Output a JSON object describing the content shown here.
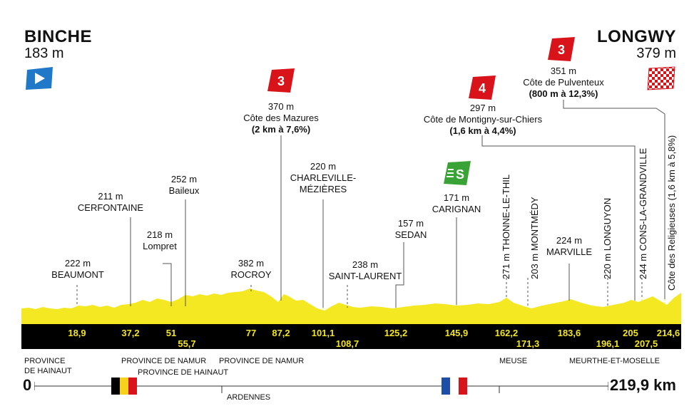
{
  "start": {
    "town": "BINCHE",
    "altitude": "183 m"
  },
  "finish": {
    "town": "LONGWY",
    "altitude": "379 m"
  },
  "points": [
    {
      "name": "BEAUMONT",
      "alt": "222 m",
      "km": "18,9"
    },
    {
      "name": "CERFONTAINE",
      "alt": "211 m",
      "km": "37,2"
    },
    {
      "name": "Lompret",
      "alt": "218 m",
      "km": "51"
    },
    {
      "name": "Baileux",
      "alt": "252 m",
      "km": "55,7"
    },
    {
      "name": "ROCROY",
      "alt": "382 m",
      "km": "77"
    },
    {
      "name": "Côte des Mazures",
      "alt": "370 m",
      "detail": "(2 km à 7,6%)",
      "category": "3",
      "km": "87,2"
    },
    {
      "name_line1": "CHARLEVILLE-",
      "name_line2": "MÉZIÈRES",
      "alt": "220 m",
      "km": "101,1"
    },
    {
      "name": "SAINT-LAURENT",
      "alt": "238 m",
      "km": "108,7"
    },
    {
      "name": "SEDAN",
      "alt": "157 m",
      "km": "125,2"
    },
    {
      "name": "CARIGNAN",
      "alt": "171 m",
      "sprint": "S",
      "km": "145,9"
    },
    {
      "name": "Côte de Montigny-sur-Chiers",
      "alt": "297 m",
      "detail": "(1,6 km à 4,4%)",
      "category": "4",
      "km": "162,2"
    },
    {
      "label": "271 m THONNE-LE-THIL",
      "km": "171,3"
    },
    {
      "label": "203 m MONTMÉDY",
      "km": "183,6"
    },
    {
      "name": "MARVILLE",
      "alt": "224 m",
      "km": "196,1"
    },
    {
      "label": "220 m LONGUYON",
      "km": "205"
    },
    {
      "label": "244 m CONS-LA-GRANDVILLE",
      "km": "207,5"
    },
    {
      "name": "Côte de Pulventeux",
      "alt": "351 m",
      "detail": "(800 m à 12,3%)",
      "category": "3",
      "km": "214,6"
    },
    {
      "label": "Côte des Religieuses (1,6 km à 5,8%)"
    }
  ],
  "km_marks": [
    "18,9",
    "37,2",
    "51",
    "55,7",
    "77",
    "87,2",
    "101,1",
    "108,7",
    "125,2",
    "145,9",
    "162,2",
    "171,3",
    "183,6",
    "196,1",
    "205",
    "207,5",
    "214,6"
  ],
  "regions": {
    "hainaut": [
      "PROVINCE",
      "DE HAINAUT"
    ],
    "namur1": "PROVINCE DE NAMUR",
    "hainaut2": "PROVINCE DE HAINAUT",
    "namur2": "PROVINCE DE NAMUR",
    "ardennes": "ARDENNES",
    "meuse": "MEUSE",
    "mm": "MEURTHE-ET-MOSELLE"
  },
  "axis": {
    "start": "0",
    "end": "219,9 km"
  },
  "colors": {
    "profile": "#f4e823",
    "band": "#000000",
    "climb": "#d8141a",
    "sprint": "#3aa335",
    "start_flag": "#1f78c8"
  }
}
